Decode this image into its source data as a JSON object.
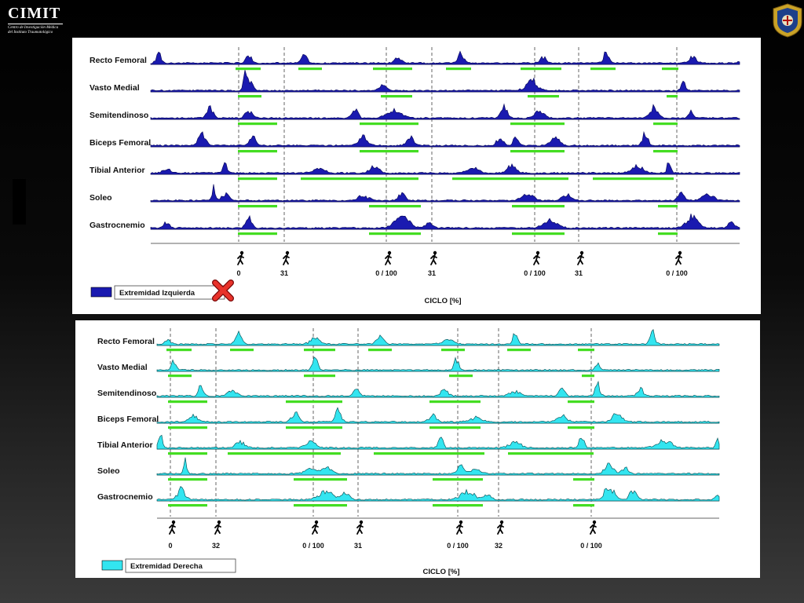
{
  "logo": {
    "name": "CIMIT",
    "subtitle_lines": [
      "Centro de Investigación Médica",
      "del Instituto Traumatológico"
    ]
  },
  "colors": {
    "left_fill": "#1a1ab0",
    "right_fill": "#33e5f0",
    "stance_bar": "#44dd22",
    "outline": "#000000"
  },
  "chart_data": [
    {
      "type": "area",
      "muscles": [
        "Recto Femoral",
        "Vasto Medial",
        "Semitendinoso",
        "Biceps Femoral",
        "Tibial Anterior",
        "Soleo",
        "Gastrocnemio"
      ],
      "legend": "Extremidad Izquierda",
      "xlabel": "CICLO [%]",
      "events": [
        "0",
        "31",
        "0 / 100",
        "31",
        "0 / 100",
        "31",
        "0 / 100"
      ],
      "marker": "red-x-icon"
    },
    {
      "type": "area",
      "muscles": [
        "Recto Femoral",
        "Vasto Medial",
        "Semitendinoso",
        "Biceps Femoral",
        "Tibial Anterior",
        "Soleo",
        "Gastrocnemio"
      ],
      "legend": "Extremidad Derecha",
      "xlabel": "CICLO [%]",
      "events": [
        "0",
        "32",
        "0 / 100",
        "31",
        "0 / 100",
        "32",
        "0 / 100"
      ]
    }
  ]
}
